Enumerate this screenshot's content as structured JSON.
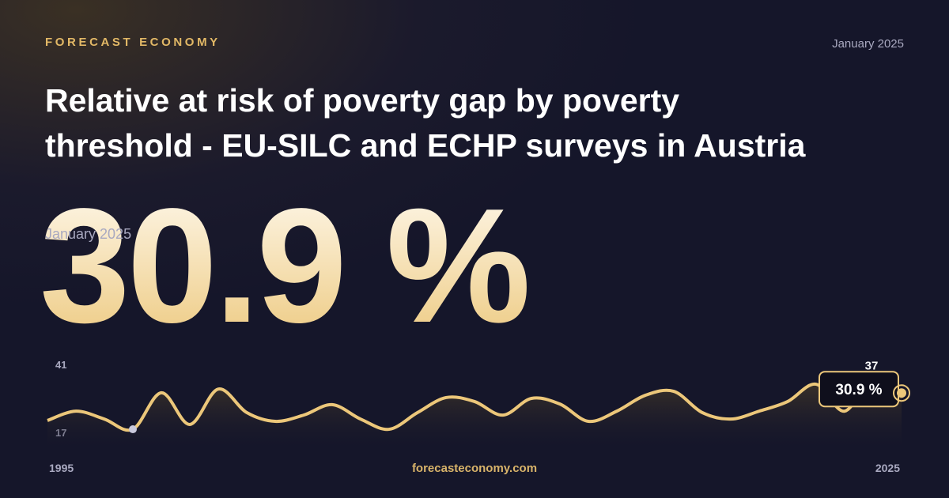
{
  "brand": "FORECAST ECONOMY",
  "date": "January 2025",
  "title_lines": [
    "Relative at risk of poverty gap by poverty",
    "threshold - EU-SILC and ECHP surveys in Austria"
  ],
  "headline": "30.9 %",
  "headline_date": "January 2025",
  "footer": "forecasteconomy.com",
  "chart_data": {
    "type": "line",
    "x": [
      1995,
      1996,
      1997,
      1998,
      1999,
      2000,
      2001,
      2002,
      2003,
      2004,
      2005,
      2006,
      2007,
      2008,
      2009,
      2010,
      2011,
      2012,
      2013,
      2014,
      2015,
      2016,
      2017,
      2018,
      2019,
      2020,
      2021,
      2022,
      2023,
      2024,
      2025
    ],
    "series": [
      {
        "name": "Relative at risk of poverty gap",
        "color": "#ecc77a",
        "values": [
          21.2,
          24.5,
          21.7,
          18.1,
          31,
          19.8,
          32.3,
          24,
          20.9,
          23.1,
          26.8,
          21.7,
          18.1,
          24,
          29.3,
          27.9,
          23.1,
          29,
          27,
          20.9,
          24.5,
          30.1,
          31.5,
          24,
          21.7,
          24.5,
          27.9,
          34,
          24.5,
          37,
          30.9
        ]
      }
    ],
    "end_label": "30.9 %",
    "xlim": [
      1995,
      2025
    ],
    "xticks": [
      1995,
      2025
    ],
    "ylim": [
      17,
      41
    ],
    "yticks": [
      17,
      41
    ]
  }
}
